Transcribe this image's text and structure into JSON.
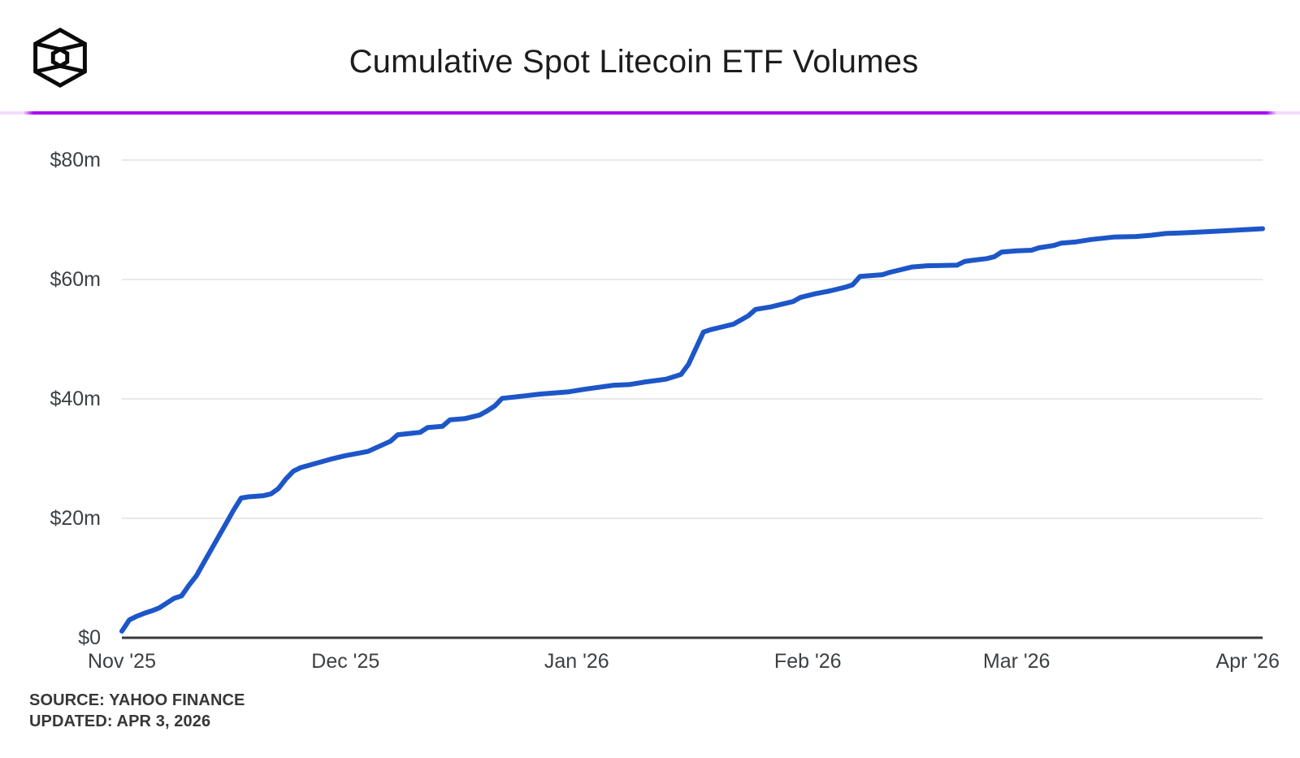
{
  "header": {
    "title": "Cumulative Spot Litecoin ETF Volumes",
    "logo_icon": "blockworks-cube-logo",
    "divider_color": "#a800f0"
  },
  "source": {
    "line1": "SOURCE: YAHOO FINANCE",
    "line2": "UPDATED: APR 3, 2026"
  },
  "chart_data": {
    "type": "line",
    "title": "Cumulative Spot Litecoin ETF Volumes",
    "x_unit": "days since Nov 1, 2025",
    "xlim": [
      0,
      153
    ],
    "ylim": [
      0,
      80
    ],
    "grid": "horizontal",
    "legend": "none",
    "line_color": "#1d56c8",
    "axis_color": "#3a3a3a",
    "gridline_color": "#e9e9e9",
    "x_ticks": [
      {
        "day": 0,
        "label": "Nov '25"
      },
      {
        "day": 30,
        "label": "Dec '25"
      },
      {
        "day": 61,
        "label": "Jan '26"
      },
      {
        "day": 92,
        "label": "Feb '26"
      },
      {
        "day": 120,
        "label": "Mar '26"
      },
      {
        "day": 151,
        "label": "Apr '26"
      }
    ],
    "y_ticks": [
      {
        "value": 0,
        "label": "$0"
      },
      {
        "value": 20,
        "label": "$20m"
      },
      {
        "value": 40,
        "label": "$40m"
      },
      {
        "value": 60,
        "label": "$60m"
      },
      {
        "value": 80,
        "label": "$80m"
      }
    ],
    "series": [
      {
        "name": "Cumulative spot Litecoin ETF volume ($m)",
        "points": [
          [
            0,
            1.1
          ],
          [
            1,
            3.0
          ],
          [
            2,
            3.6
          ],
          [
            3,
            4.1
          ],
          [
            4,
            4.5
          ],
          [
            5,
            5.0
          ],
          [
            6,
            5.8
          ],
          [
            7,
            6.6
          ],
          [
            8,
            7.0
          ],
          [
            9,
            8.8
          ],
          [
            10,
            10.4
          ],
          [
            11,
            12.6
          ],
          [
            12,
            14.8
          ],
          [
            13,
            17.0
          ],
          [
            14,
            19.2
          ],
          [
            15,
            21.4
          ],
          [
            16,
            23.4
          ],
          [
            17,
            23.6
          ],
          [
            19,
            23.8
          ],
          [
            20,
            24.1
          ],
          [
            21,
            25.0
          ],
          [
            22,
            26.6
          ],
          [
            23,
            27.9
          ],
          [
            24,
            28.5
          ],
          [
            26,
            29.2
          ],
          [
            28,
            29.9
          ],
          [
            30,
            30.5
          ],
          [
            33,
            31.2
          ],
          [
            36,
            32.9
          ],
          [
            37,
            34.0
          ],
          [
            40,
            34.4
          ],
          [
            41,
            35.2
          ],
          [
            43,
            35.4
          ],
          [
            44,
            36.5
          ],
          [
            46,
            36.7
          ],
          [
            48,
            37.3
          ],
          [
            49,
            38.0
          ],
          [
            50,
            38.8
          ],
          [
            51,
            40.1
          ],
          [
            54,
            40.5
          ],
          [
            56,
            40.8
          ],
          [
            60,
            41.2
          ],
          [
            62,
            41.6
          ],
          [
            66,
            42.3
          ],
          [
            68,
            42.4
          ],
          [
            70,
            42.8
          ],
          [
            73,
            43.3
          ],
          [
            75,
            44.1
          ],
          [
            76,
            45.8
          ],
          [
            77,
            48.5
          ],
          [
            78,
            51.2
          ],
          [
            79,
            51.6
          ],
          [
            80,
            51.9
          ],
          [
            82,
            52.5
          ],
          [
            83,
            53.2
          ],
          [
            84,
            53.9
          ],
          [
            85,
            55.0
          ],
          [
            87,
            55.4
          ],
          [
            88,
            55.7
          ],
          [
            90,
            56.3
          ],
          [
            91,
            57.0
          ],
          [
            93,
            57.6
          ],
          [
            95,
            58.1
          ],
          [
            97,
            58.7
          ],
          [
            98,
            59.1
          ],
          [
            99,
            60.5
          ],
          [
            102,
            60.8
          ],
          [
            103,
            61.2
          ],
          [
            104,
            61.5
          ],
          [
            106,
            62.1
          ],
          [
            108,
            62.3
          ],
          [
            112,
            62.4
          ],
          [
            113,
            63.0
          ],
          [
            114,
            63.2
          ],
          [
            116,
            63.5
          ],
          [
            117,
            63.8
          ],
          [
            118,
            64.6
          ],
          [
            120,
            64.8
          ],
          [
            122,
            64.9
          ],
          [
            123,
            65.3
          ],
          [
            125,
            65.7
          ],
          [
            126,
            66.1
          ],
          [
            128,
            66.3
          ],
          [
            130,
            66.7
          ],
          [
            133,
            67.1
          ],
          [
            136,
            67.2
          ],
          [
            138,
            67.4
          ],
          [
            140,
            67.7
          ],
          [
            142,
            67.8
          ],
          [
            144,
            67.9
          ],
          [
            147,
            68.1
          ],
          [
            150,
            68.3
          ],
          [
            153,
            68.5
          ]
        ]
      }
    ]
  }
}
